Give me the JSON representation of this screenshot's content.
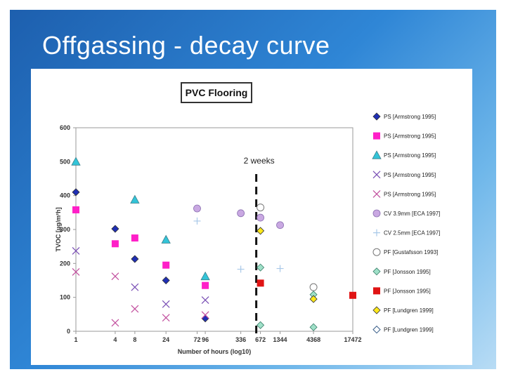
{
  "slide": {
    "title": "Offgassing - decay curve"
  },
  "chart_data": {
    "type": "scatter",
    "title": "PVC Flooring",
    "xlabel": "Number of hours (log10)",
    "ylabel": "TVOC [µg/m²h]",
    "x_scale": "log",
    "xlim": [
      1,
      17472
    ],
    "ylim": [
      0,
      600
    ],
    "y_ticks": [
      0,
      100,
      200,
      300,
      400,
      500,
      600
    ],
    "x_ticks": [
      1,
      4,
      8,
      24,
      72,
      96,
      336,
      672,
      1344,
      4368,
      17472
    ],
    "grid": false,
    "legend_position": "right",
    "annotation": {
      "label": "2 weeks",
      "x": 336
    },
    "series": [
      {
        "name": "PS [Armstrong 1995]",
        "color": "#1f2fb5",
        "marker": "diamond",
        "points": [
          [
            1,
            410
          ],
          [
            4,
            302
          ],
          [
            8,
            213
          ],
          [
            24,
            150
          ],
          [
            96,
            38
          ]
        ]
      },
      {
        "name": "PS [Armstrong 1995]",
        "color": "#ff1fc8",
        "marker": "square",
        "points": [
          [
            1,
            358
          ],
          [
            4,
            258
          ],
          [
            8,
            275
          ],
          [
            24,
            195
          ],
          [
            96,
            135
          ]
        ]
      },
      {
        "name": "PS [Armstrong 1995]",
        "color": "#33c4d8",
        "marker": "triangle",
        "points": [
          [
            1,
            500
          ],
          [
            8,
            388
          ],
          [
            24,
            270
          ],
          [
            96,
            162
          ]
        ]
      },
      {
        "name": "PS [Armstrong 1995]",
        "color": "#7a4fb5",
        "marker": "x",
        "points": [
          [
            1,
            237
          ],
          [
            8,
            130
          ],
          [
            24,
            80
          ],
          [
            96,
            92
          ]
        ]
      },
      {
        "name": "PS [Armstrong 1995]",
        "color": "#c24f9e",
        "marker": "x",
        "points": [
          [
            1,
            175
          ],
          [
            4,
            162
          ],
          [
            4,
            25
          ],
          [
            8,
            66
          ],
          [
            24,
            40
          ],
          [
            96,
            48
          ]
        ]
      },
      {
        "name": "CV 3.9mm [ECA 1997]",
        "color": "#c9a8e2",
        "marker": "circle",
        "points": [
          [
            72,
            362
          ],
          [
            336,
            348
          ],
          [
            672,
            335
          ],
          [
            1344,
            313
          ]
        ]
      },
      {
        "name": "CV 2.5mm [ECA 1997]",
        "color": "#a8c8e8",
        "marker": "plus",
        "points": [
          [
            72,
            325
          ],
          [
            336,
            183
          ],
          [
            1344,
            185
          ]
        ]
      },
      {
        "name": "PF [Gustafsson 1993]",
        "color": "#ffffff",
        "marker": "circle-open",
        "points": [
          [
            672,
            365
          ],
          [
            4368,
            130
          ]
        ]
      },
      {
        "name": "PF [Jonsson 1995]",
        "color": "#9fe0c8",
        "marker": "diamond",
        "points": [
          [
            672,
            188
          ],
          [
            672,
            18
          ],
          [
            4368,
            108
          ],
          [
            4368,
            12
          ]
        ]
      },
      {
        "name": "PF [Jonsson 1995]",
        "color": "#e01414",
        "marker": "square",
        "points": [
          [
            672,
            142
          ],
          [
            17472,
            106
          ]
        ]
      },
      {
        "name": "PF [Lundgren 1999]",
        "color": "#ffe81a",
        "marker": "diamond",
        "points": [
          [
            672,
            296
          ],
          [
            4368,
            95
          ]
        ]
      },
      {
        "name": "PF [Lundgren 1999]",
        "color": "#ffffff",
        "marker": "diamond-open",
        "points": []
      }
    ]
  }
}
